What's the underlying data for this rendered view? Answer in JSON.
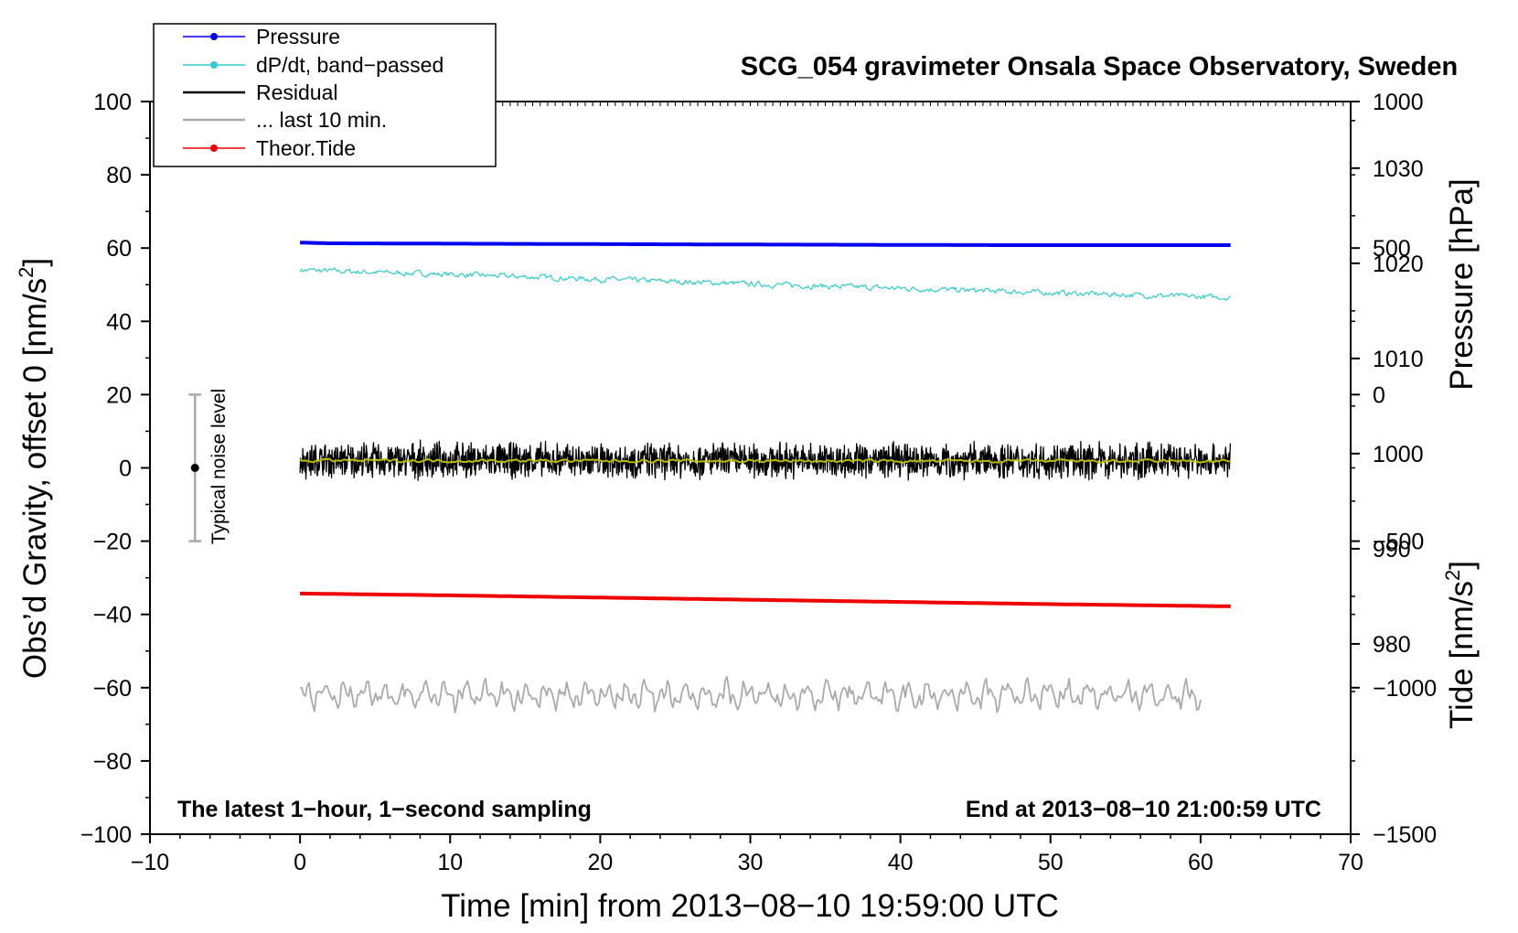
{
  "chart_data": {
    "type": "line",
    "title": "SCG_054 gravimeter Onsala Space Observatory, Sweden",
    "xlabel": "Time [min] from 2013−08−10 19:59:00 UTC",
    "ylabel_left_main": "Obs’d Gravity, offset 0 [nm/s",
    "ylabel_left_sup": "2",
    "ylabel_left_close": "]",
    "ylabel_right_pressure": "Pressure [hPa]",
    "ylabel_right_tide_main": "Tide [nm/s",
    "ylabel_right_tide_sup": "2",
    "ylabel_right_tide_close": "]",
    "xlim": [
      -10,
      70
    ],
    "ylim": [
      -100,
      100
    ],
    "x_ticks": [
      "−10",
      "0",
      "10",
      "20",
      "30",
      "40",
      "50",
      "60",
      "70"
    ],
    "y_ticks": [
      "−100",
      "−80",
      "−60",
      "−40",
      "−20",
      "0",
      "20",
      "40",
      "60",
      "80",
      "100"
    ],
    "pressure_ticks": [
      "980",
      "990",
      "1000",
      "1010",
      "1020",
      "1030"
    ],
    "tide_ticks": [
      "−1500",
      "−1000",
      "−500",
      "0",
      "500",
      "1000"
    ],
    "pressure_axis_range": [
      960,
      1037
    ],
    "tide_axis_range": [
      -1500,
      1000
    ],
    "legend": {
      "position": "top-left",
      "entries": [
        "Pressure",
        "dP/dt, band−passed",
        "Residual",
        "... last 10 min.",
        "Theor.Tide"
      ]
    },
    "note_left": "The latest 1−hour, 1−second sampling",
    "note_right": "End at 2013−08−10 21:00:59 UTC",
    "noise_label": "Typical noise level",
    "noise_bar": {
      "x": -7,
      "center": 0,
      "half_range": 20
    },
    "series": [
      {
        "name": "Pressure",
        "color": "#0000ee",
        "x": [
          0,
          2,
          27,
          47,
          62
        ],
        "values": [
          61.5,
          61.3,
          61.0,
          60.8,
          60.8
        ]
      },
      {
        "name": "dP/dt, band-passed",
        "color": "#33cccc",
        "x": [
          0,
          10,
          20,
          30,
          40,
          50,
          62
        ],
        "values": [
          54.0,
          52.8,
          51.5,
          50.2,
          49.0,
          47.8,
          46.5
        ]
      },
      {
        "name": "Residual",
        "color": "#000000",
        "x": [
          0,
          62
        ],
        "values": [
          2.0,
          2.0
        ],
        "noise_amplitude": 4.0
      },
      {
        "name": "Residual smoothed",
        "color": "#bbbb00",
        "x": [
          0,
          62
        ],
        "values": [
          2.0,
          1.8
        ]
      },
      {
        "name": "... last 10 min.",
        "color": "#aaaaaa",
        "x": [
          0,
          60
        ],
        "values": [
          -62.0,
          -62.0
        ],
        "noise_amplitude": 3.5
      },
      {
        "name": "Theor.Tide",
        "color": "#ee0000",
        "x": [
          0,
          10,
          20,
          30,
          40,
          50,
          62
        ],
        "values": [
          -34.3,
          -34.8,
          -35.4,
          -36.0,
          -36.6,
          -37.2,
          -37.8
        ]
      }
    ]
  }
}
